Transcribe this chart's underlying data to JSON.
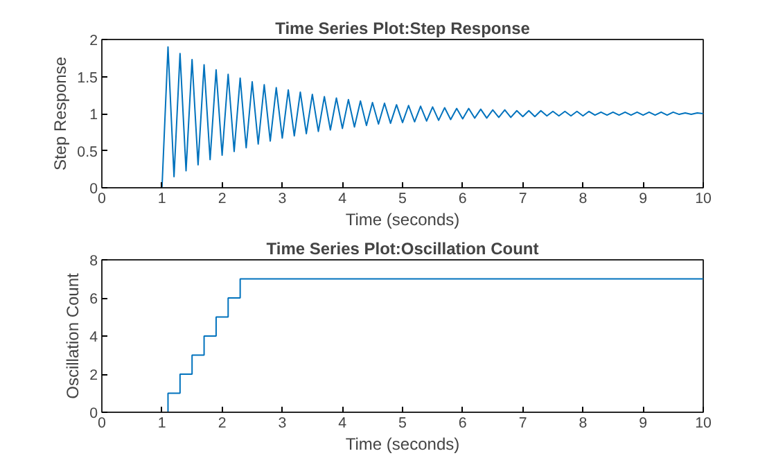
{
  "chart_data": [
    {
      "type": "line",
      "title": "Time Series Plot:Step Response",
      "xlabel": "Time (seconds)",
      "ylabel": "Step Response",
      "xlim": [
        0,
        10
      ],
      "ylim": [
        0,
        2
      ],
      "xticks": [
        0,
        1,
        2,
        3,
        4,
        5,
        6,
        7,
        8,
        9,
        10
      ],
      "yticks": [
        0,
        0.5,
        1,
        1.5,
        2
      ],
      "series": [
        {
          "color": "#0072bd",
          "x": [
            0,
            1.0,
            1.1,
            1.2,
            1.3,
            1.4,
            1.5,
            1.6,
            1.7,
            1.8,
            1.9,
            2.0,
            2.1,
            2.2,
            2.3,
            2.4,
            2.5,
            2.6,
            2.7,
            2.8,
            2.9,
            3.0,
            3.1,
            3.2,
            3.3,
            3.4,
            3.5,
            3.6,
            3.7,
            3.8,
            3.9,
            4.0,
            4.1,
            4.2,
            4.3,
            4.4,
            4.5,
            4.6,
            4.7,
            4.8,
            4.9,
            5.0,
            5.1,
            5.2,
            5.3,
            5.4,
            5.5,
            5.6,
            5.7,
            5.8,
            5.9,
            6.0,
            6.1,
            6.2,
            6.3,
            6.4,
            6.5,
            6.6,
            6.7,
            6.8,
            6.9,
            7.0,
            7.1,
            7.2,
            7.3,
            7.4,
            7.5,
            7.6,
            7.7,
            7.8,
            7.9,
            8.0,
            8.1,
            8.2,
            8.3,
            8.4,
            8.5,
            8.6,
            8.7,
            8.8,
            8.9,
            9.0,
            9.1,
            9.2,
            9.3,
            9.4,
            9.5,
            9.6,
            9.7,
            9.8,
            9.9,
            10.0
          ],
          "values": [
            0,
            0,
            1.9,
            0.15,
            1.81,
            0.23,
            1.73,
            0.31,
            1.66,
            0.38,
            1.59,
            0.44,
            1.53,
            0.49,
            1.48,
            0.54,
            1.43,
            0.59,
            1.39,
            0.63,
            1.35,
            0.67,
            1.32,
            0.7,
            1.29,
            0.73,
            1.26,
            0.76,
            1.23,
            0.78,
            1.21,
            0.8,
            1.19,
            0.82,
            1.17,
            0.84,
            1.15,
            0.86,
            1.14,
            0.87,
            1.12,
            0.88,
            1.11,
            0.89,
            1.1,
            0.9,
            1.09,
            0.91,
            1.08,
            0.92,
            1.07,
            0.93,
            1.07,
            0.94,
            1.06,
            0.94,
            1.05,
            0.95,
            1.05,
            0.95,
            1.04,
            0.96,
            1.04,
            0.96,
            1.04,
            0.97,
            1.03,
            0.97,
            1.03,
            0.97,
            1.03,
            0.97,
            1.03,
            0.98,
            1.02,
            0.98,
            1.02,
            0.98,
            1.02,
            0.98,
            1.02,
            0.98,
            1.02,
            0.98,
            1.02,
            0.98,
            1.02,
            0.99,
            1.01,
            0.99,
            1.01,
            1.0
          ]
        }
      ]
    },
    {
      "type": "step",
      "title": "Time Series Plot:Oscillation Count",
      "xlabel": "Time (seconds)",
      "ylabel": "Oscillation Count",
      "xlim": [
        0,
        10
      ],
      "ylim": [
        0,
        8
      ],
      "xticks": [
        0,
        1,
        2,
        3,
        4,
        5,
        6,
        7,
        8,
        9,
        10
      ],
      "yticks": [
        0,
        2,
        4,
        6,
        8
      ],
      "series": [
        {
          "color": "#0072bd",
          "x": [
            0,
            1.1,
            1.3,
            1.5,
            1.7,
            1.9,
            2.1,
            2.3,
            10
          ],
          "values": [
            0,
            1,
            2,
            3,
            4,
            5,
            6,
            7,
            7
          ]
        }
      ]
    }
  ]
}
